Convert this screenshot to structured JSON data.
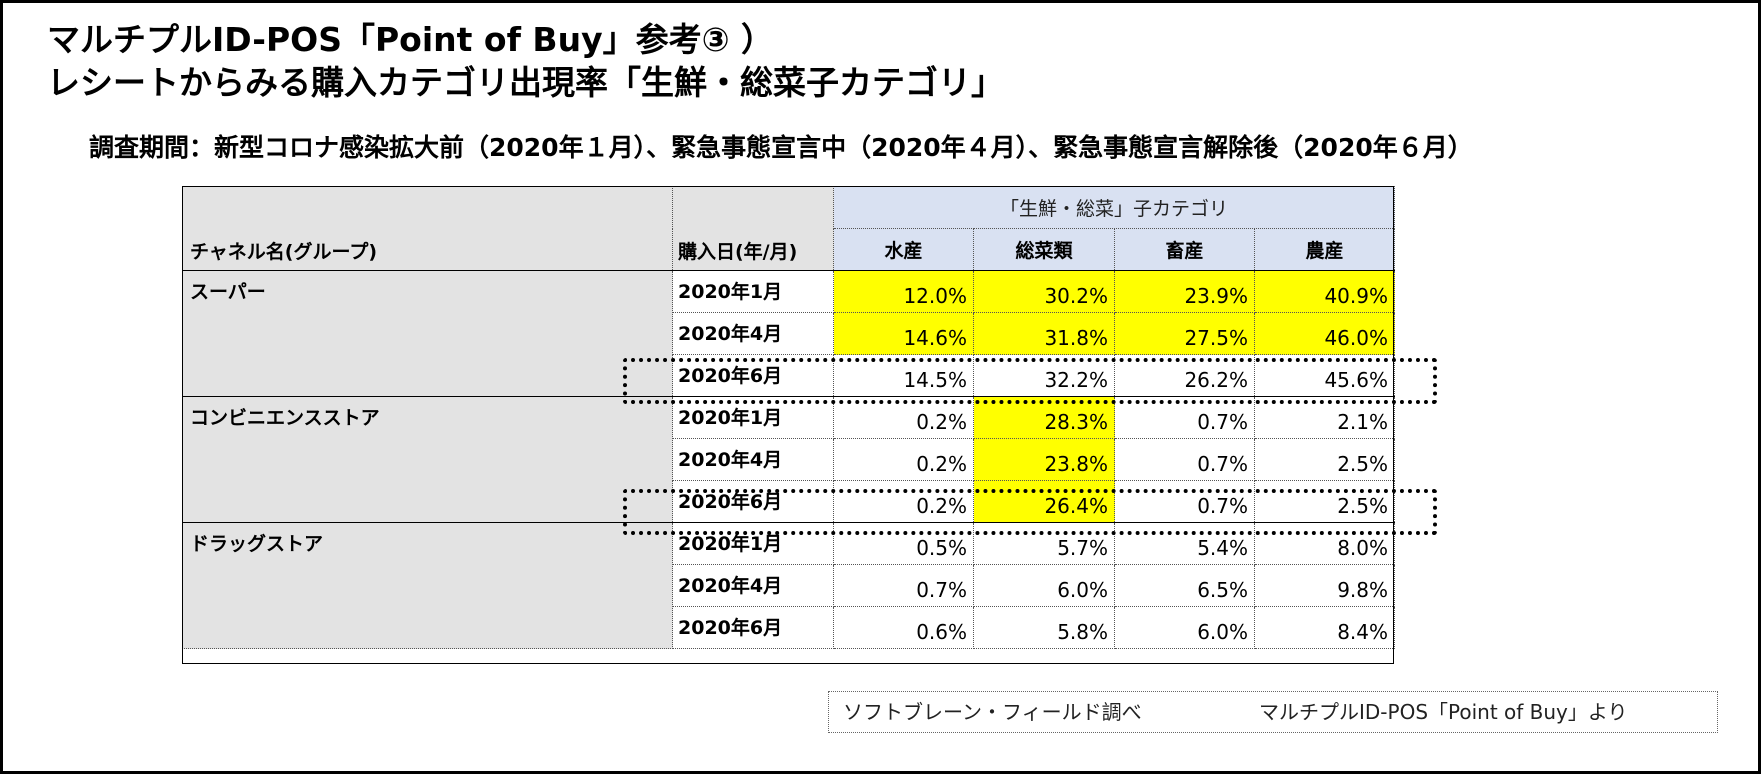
{
  "title_line1": "マルチプルID-POS「Point of Buy」参考③ ）",
  "title_line2": "レシートからみる購入カテゴリ出現率「生鮮・総菜子カテゴリ」",
  "subtitle": "調査期間：新型コロナ感染拡大前（2020年１月）、緊急事態宣言中（2020年４月）、緊急事態宣言解除後（2020年６月）",
  "table": {
    "channel_header": "チャネル名(グループ)",
    "date_header": "購入日(年/月)",
    "group_header": "「生鮮・総菜」子カテゴリ",
    "categories": [
      "水産",
      "総菜類",
      "畜産",
      "農産"
    ],
    "groups": [
      {
        "channel": "スーパー",
        "rows": [
          {
            "date": "2020年1月",
            "values": [
              "12.0%",
              "30.2%",
              "23.9%",
              "40.9%"
            ],
            "highlight": [
              true,
              true,
              true,
              true
            ]
          },
          {
            "date": "2020年4月",
            "values": [
              "14.6%",
              "31.8%",
              "27.5%",
              "46.0%"
            ],
            "highlight": [
              true,
              true,
              true,
              true
            ]
          },
          {
            "date": "2020年6月",
            "values": [
              "14.5%",
              "32.2%",
              "26.2%",
              "45.6%"
            ],
            "highlight": [
              false,
              false,
              false,
              false
            ]
          }
        ]
      },
      {
        "channel": "コンビニエンスストア",
        "rows": [
          {
            "date": "2020年1月",
            "values": [
              "0.2%",
              "28.3%",
              "0.7%",
              "2.1%"
            ],
            "highlight": [
              false,
              true,
              false,
              false
            ]
          },
          {
            "date": "2020年4月",
            "values": [
              "0.2%",
              "23.8%",
              "0.7%",
              "2.5%"
            ],
            "highlight": [
              false,
              true,
              false,
              false
            ]
          },
          {
            "date": "2020年6月",
            "values": [
              "0.2%",
              "26.4%",
              "0.7%",
              "2.5%"
            ],
            "highlight": [
              false,
              true,
              false,
              false
            ]
          }
        ]
      },
      {
        "channel": "ドラッグストア",
        "rows": [
          {
            "date": "2020年1月",
            "values": [
              "0.5%",
              "5.7%",
              "5.4%",
              "8.0%"
            ],
            "highlight": [
              false,
              false,
              false,
              false
            ]
          },
          {
            "date": "2020年4月",
            "values": [
              "0.7%",
              "6.0%",
              "6.5%",
              "9.8%"
            ],
            "highlight": [
              false,
              false,
              false,
              false
            ]
          },
          {
            "date": "2020年6月",
            "values": [
              "0.6%",
              "5.8%",
              "6.0%",
              "8.4%"
            ],
            "highlight": [
              false,
              false,
              false,
              false
            ]
          }
        ]
      }
    ]
  },
  "source": {
    "left": "ソフトブレーン・フィールド調べ",
    "right": "マルチプルID-POS「Point of Buy」より"
  },
  "colors": {
    "highlight": "#ffff00",
    "header_blue": "#d9e1f2",
    "header_gray": "#e3e3e3"
  }
}
